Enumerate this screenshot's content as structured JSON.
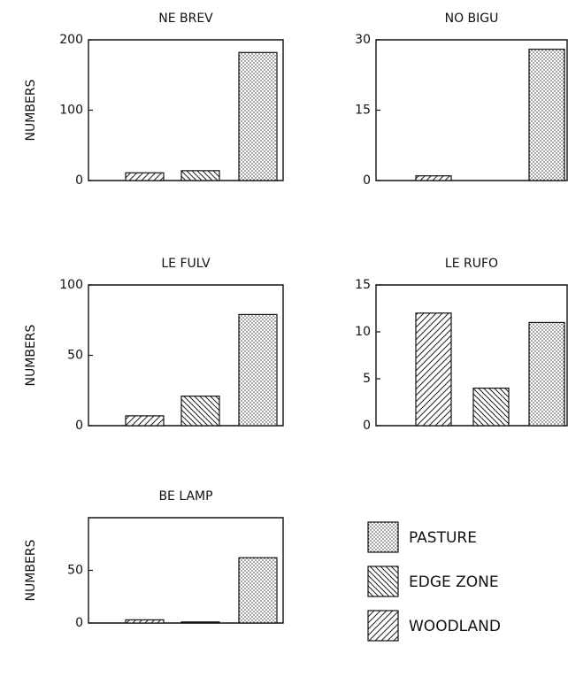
{
  "chart_data": [
    {
      "type": "bar",
      "title": "NE BREV",
      "ylabel": "NUMBERS",
      "values": [
        11,
        14,
        182
      ],
      "ylim": [
        0,
        200
      ],
      "yticks": [
        0,
        100,
        200
      ]
    },
    {
      "type": "bar",
      "title": "NO BIGU",
      "values": [
        1,
        0,
        28
      ],
      "ylim": [
        0,
        30
      ],
      "yticks": [
        0,
        15,
        30
      ]
    },
    {
      "type": "bar",
      "title": "LE FULV",
      "ylabel": "NUMBERS",
      "values": [
        7,
        21,
        79
      ],
      "ylim": [
        0,
        100
      ],
      "yticks": [
        0,
        50,
        100
      ]
    },
    {
      "type": "bar",
      "title": "LE RUFO",
      "values": [
        12,
        4,
        11
      ],
      "ylim": [
        0,
        15
      ],
      "yticks": [
        0,
        5,
        10,
        15
      ]
    },
    {
      "type": "bar",
      "title": "BE LAMP",
      "ylabel": "NUMBERS",
      "values": [
        3,
        1,
        62
      ],
      "ylim": [
        0,
        100
      ],
      "yticks": [
        0,
        50
      ]
    }
  ],
  "legend": {
    "entries": [
      {
        "name": "WOODLAND",
        "pattern": "fwd"
      },
      {
        "name": "EDGE ZONE",
        "pattern": "back"
      },
      {
        "name": "PASTURE",
        "pattern": "dots"
      }
    ]
  }
}
